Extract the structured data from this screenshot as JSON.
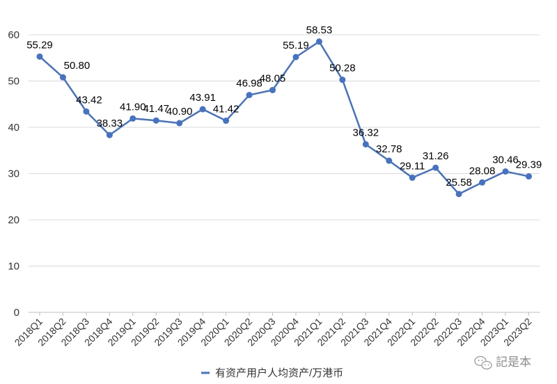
{
  "chart_data": {
    "type": "line",
    "categories": [
      "2018Q1",
      "2018Q2",
      "2018Q3",
      "2018Q4",
      "2019Q1",
      "2019Q2",
      "2019Q3",
      "2019Q4",
      "2020Q1",
      "2020Q2",
      "2020Q3",
      "2020Q4",
      "2021Q1",
      "2021Q2",
      "2021Q3",
      "2021Q4",
      "2022Q1",
      "2022Q2",
      "2022Q3",
      "2022Q4",
      "2023Q1",
      "2023Q2"
    ],
    "series": [
      {
        "name": "有资产用户人均资产/万港币",
        "values": [
          55.29,
          50.8,
          43.42,
          38.33,
          41.9,
          41.47,
          40.9,
          43.91,
          41.42,
          46.98,
          48.05,
          55.19,
          58.53,
          50.28,
          36.32,
          32.78,
          29.11,
          31.26,
          25.58,
          28.08,
          30.46,
          29.39
        ],
        "labels": [
          "55.29",
          "50.80",
          "43.42",
          "38.33",
          "41.90",
          "41.47",
          "40.90",
          "43.91",
          "41.42",
          "46.98",
          "48.05",
          "55.19",
          "58.53",
          "50.28",
          "36.32",
          "32.78",
          "29.11",
          "31.26",
          "25.58",
          "28.08",
          "30.46",
          "29.39"
        ],
        "color": "#4472c4"
      }
    ],
    "ylim": [
      0,
      60
    ],
    "yticks": [
      0,
      10,
      20,
      30,
      40,
      50,
      60
    ],
    "ytick_labels": [
      "0",
      "10",
      "20",
      "30",
      "40",
      "50",
      "60"
    ],
    "grid": true,
    "legend_position": "bottom-center"
  },
  "watermark": {
    "text": "記是本",
    "icon": "wechat-icon"
  }
}
